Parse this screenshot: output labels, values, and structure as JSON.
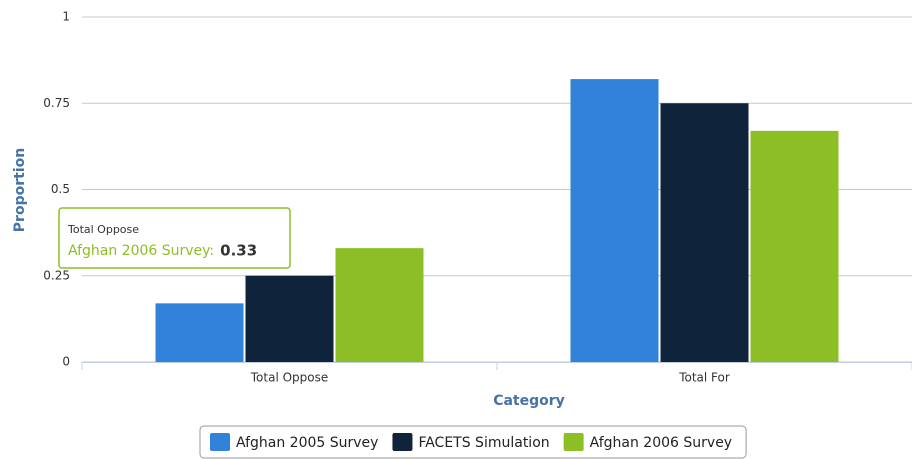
{
  "chart_data": {
    "type": "bar",
    "x_label": "Category",
    "y_label": "Proportion",
    "categories": [
      "Total Oppose",
      "Total For"
    ],
    "series": [
      {
        "name": "Afghan 2005 Survey",
        "color": "#3182d9",
        "values": [
          0.17,
          0.82
        ]
      },
      {
        "name": "FACETS Simulation",
        "color": "#0f233a",
        "values": [
          0.25,
          0.75
        ]
      },
      {
        "name": "Afghan 2006 Survey",
        "color": "#8cbf26",
        "values": [
          0.33,
          0.67
        ]
      }
    ],
    "ylim": [
      0,
      1
    ],
    "yticks": [
      0,
      0.25,
      0.5,
      0.75,
      1
    ],
    "grid": true,
    "tooltip": {
      "title": "Total Oppose",
      "label": "Afghan 2006 Survey:",
      "value": 0.33
    }
  }
}
